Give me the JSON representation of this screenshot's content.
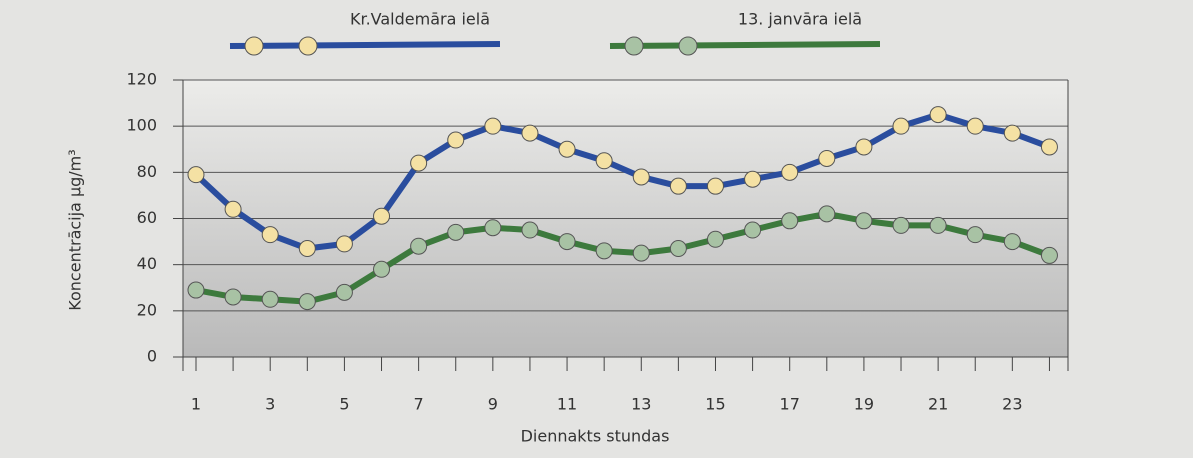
{
  "chart_data": {
    "type": "line",
    "x_label": "Diennakts stundas",
    "y_label": "Koncentrācija μg/m³",
    "x": [
      1,
      2,
      3,
      4,
      5,
      6,
      7,
      8,
      9,
      10,
      11,
      12,
      13,
      14,
      15,
      16,
      17,
      18,
      19,
      20,
      21,
      22,
      23,
      24
    ],
    "series": [
      {
        "name": "Kr.Valdemāra ielā",
        "color": "#2a4d9e",
        "marker_color": "#f4e1a4",
        "values": [
          79,
          64,
          53,
          47,
          49,
          61,
          84,
          94,
          100,
          97,
          90,
          85,
          78,
          74,
          74,
          77,
          80,
          86,
          91,
          100,
          105,
          100,
          97,
          91
        ]
      },
      {
        "name": "13. janvāra ielā",
        "color": "#3d7a3d",
        "marker_color": "#a8c2a4",
        "values": [
          29,
          26,
          25,
          24,
          28,
          38,
          48,
          54,
          56,
          55,
          50,
          46,
          45,
          47,
          51,
          55,
          59,
          62,
          59,
          57,
          57,
          53,
          50,
          44
        ]
      }
    ],
    "xlim": [
      0.65,
      24.5
    ],
    "xticks": [
      1,
      3,
      5,
      7,
      9,
      11,
      13,
      15,
      17,
      19,
      21,
      23
    ],
    "xminorticks": [
      2,
      4,
      6,
      8,
      10,
      12,
      14,
      16,
      18,
      20,
      22,
      24
    ],
    "ylim": [
      0,
      120
    ],
    "yticks": [
      0,
      20,
      40,
      60,
      80,
      100,
      120
    ],
    "grid": true
  }
}
